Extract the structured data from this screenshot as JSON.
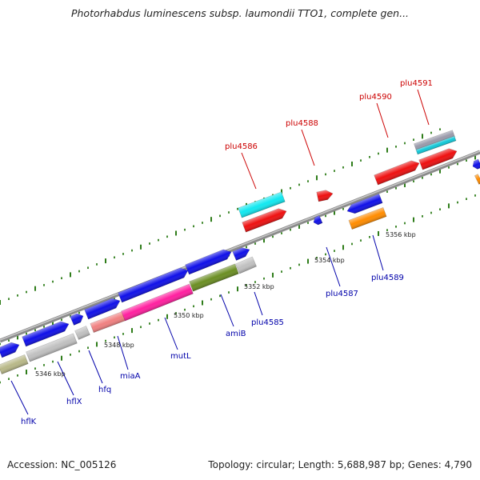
{
  "title": "Photorhabdus luminescens subsp. laumondii TTO1, complete gen...",
  "footer": {
    "accession": "Accession: NC_005126",
    "summary": "Topology: circular; Length: 5,688,987 bp; Genes: 4,790"
  },
  "colors": {
    "backbone": "#8a8a8a",
    "tick_dots": "#2f7d1a",
    "label_forward": "#cc0000",
    "label_reverse": "#0000aa"
  },
  "scale_labels": [
    "5346 kbp",
    "5348 kbp",
    "5350 kbp",
    "5352 kbp",
    "5354 kbp",
    "5356 kbp"
  ],
  "gene_labels": [
    {
      "name": "hflK",
      "color": "#0000aa"
    },
    {
      "name": "hflX",
      "color": "#0000aa"
    },
    {
      "name": "hfq",
      "color": "#0000aa"
    },
    {
      "name": "miaA",
      "color": "#0000aa"
    },
    {
      "name": "mutL",
      "color": "#0000aa"
    },
    {
      "name": "amiB",
      "color": "#0000aa"
    },
    {
      "name": "plu4585",
      "color": "#0000aa"
    },
    {
      "name": "plu4587",
      "color": "#0000aa"
    },
    {
      "name": "plu4589",
      "color": "#0000aa"
    },
    {
      "name": "plu4586",
      "color": "#cc0000"
    },
    {
      "name": "plu4588",
      "color": "#cc0000"
    },
    {
      "name": "plu4590",
      "color": "#cc0000"
    },
    {
      "name": "plu4591",
      "color": "#cc0000"
    }
  ]
}
